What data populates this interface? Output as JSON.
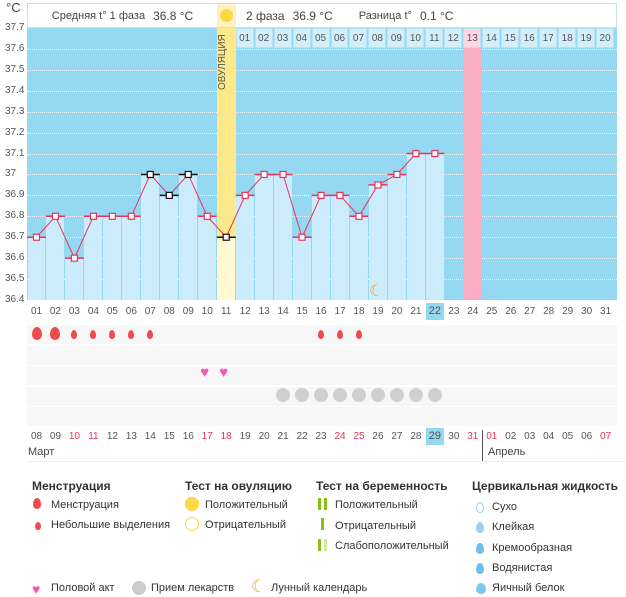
{
  "header": {
    "unit": "°C",
    "phase1_label": "Средняя t° 1 фаза",
    "phase1_value": "36.8 °C",
    "phase2_label": "2 фаза",
    "phase2_value": "36.9 °C",
    "diff_label": "Разница t°",
    "diff_value": "0.1 °C",
    "ovulation_label": "ОВУЛЯЦИЯ"
  },
  "chart_data": {
    "type": "line",
    "ylim": [
      36.4,
      37.7
    ],
    "yticks": [
      "37.7",
      "37.6",
      "37.5",
      "37.4",
      "37.3",
      "37.2",
      "37.1",
      "37",
      "36.9",
      "36.8",
      "36.7",
      "36.6",
      "36.5",
      "36.4"
    ],
    "cycle_days": [
      "01",
      "02",
      "03",
      "04",
      "05",
      "06",
      "07",
      "08",
      "09",
      "10",
      "11",
      "12",
      "13",
      "14",
      "15",
      "16",
      "17",
      "18",
      "19",
      "20",
      "21",
      "22",
      "23",
      "24",
      "25",
      "26",
      "27",
      "28",
      "29",
      "30",
      "31"
    ],
    "temperatures": [
      36.7,
      36.8,
      36.6,
      36.8,
      36.8,
      36.8,
      37.0,
      36.9,
      37.0,
      36.8,
      36.7,
      36.9,
      37.0,
      37.0,
      36.7,
      36.9,
      36.9,
      36.8,
      36.95,
      37.0,
      37.1,
      37.1
    ],
    "excluded_points_days": [
      7,
      8,
      9,
      11
    ],
    "ovulation_day": 11,
    "expected_period_day": 24,
    "today_day": 22,
    "post_ovulation_days": [
      "01",
      "02",
      "03",
      "04",
      "05",
      "06",
      "07",
      "08",
      "09",
      "10",
      "11",
      "12",
      "13",
      "14",
      "15",
      "16",
      "17",
      "18",
      "19",
      "20"
    ],
    "post_ovulation_highlight": "13",
    "dates": [
      "08",
      "09",
      "10",
      "11",
      "12",
      "13",
      "14",
      "15",
      "16",
      "17",
      "18",
      "19",
      "20",
      "21",
      "22",
      "23",
      "24",
      "25",
      "26",
      "27",
      "28",
      "29",
      "30",
      "31",
      "01",
      "02",
      "03",
      "04",
      "05",
      "06",
      "07"
    ],
    "weekend_date_indices": [
      2,
      3,
      9,
      10,
      16,
      17,
      23,
      24,
      30
    ],
    "months": [
      "Март",
      "Апрель"
    ],
    "menstruation_heavy_days": [
      1,
      2
    ],
    "menstruation_light_days": [
      3,
      4,
      5,
      6,
      7,
      16,
      17,
      18
    ],
    "intercourse_days": [
      10,
      11
    ],
    "medication_days": [
      14,
      15,
      16,
      17,
      18,
      19,
      20,
      21,
      22
    ],
    "moon_day": 19
  },
  "colors": {
    "bg": "#94d8f2",
    "bar": "#ccecfb",
    "line": "#e8345a",
    "ovulation": "#fde98a",
    "period": "#f9adc4"
  },
  "legend": {
    "menstruation": {
      "title": "Менструация",
      "items": [
        "Менструация",
        "Небольшие выделения"
      ]
    },
    "ovulation_test": {
      "title": "Тест на овуляцию",
      "items": [
        "Положительный",
        "Отрицательный"
      ]
    },
    "pregnancy_test": {
      "title": "Тест на беременность",
      "items": [
        "Положительный",
        "Отрицательный",
        "Слабоположительный"
      ]
    },
    "cervical": {
      "title": "Цервикальная жидкость",
      "items": [
        "Сухо",
        "Клейкая",
        "Кремообразная",
        "Водянистая",
        "Яичный белок"
      ]
    },
    "other": [
      "Половой акт",
      "Прием лекарств",
      "Лунный календарь"
    ]
  }
}
